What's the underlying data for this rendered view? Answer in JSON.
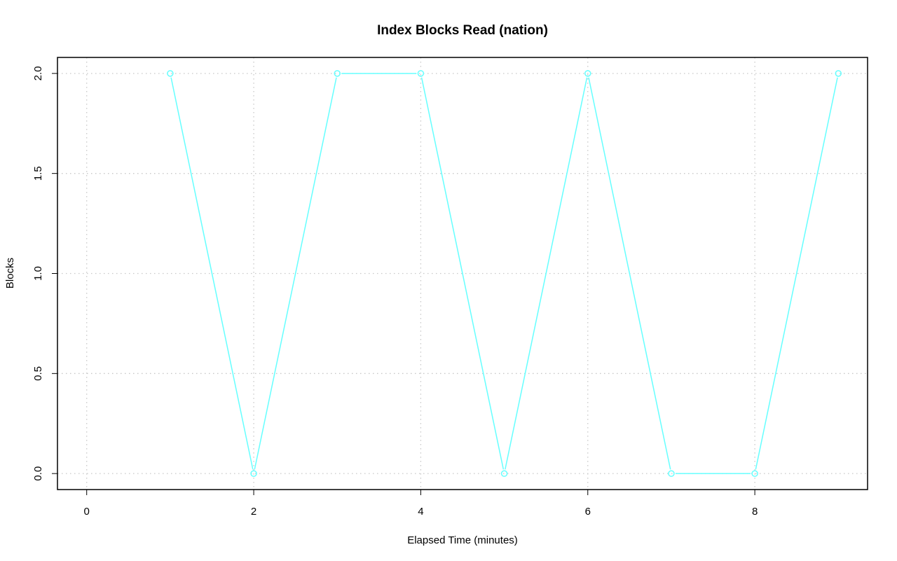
{
  "chart_data": {
    "type": "line",
    "title": "Index Blocks Read (nation)",
    "xlabel": "Elapsed Time (minutes)",
    "ylabel": "Blocks",
    "xlim": [
      -0.35,
      9.35
    ],
    "ylim": [
      -0.08,
      2.08
    ],
    "x_ticks": [
      0,
      2,
      4,
      6,
      8
    ],
    "x_tick_labels": [
      "0",
      "2",
      "4",
      "6",
      "8"
    ],
    "y_ticks": [
      0,
      0.5,
      1,
      1.5,
      2
    ],
    "y_tick_labels": [
      "0.0",
      "0.5",
      "1.0",
      "1.5",
      "2.0"
    ],
    "grid": true,
    "grid_x": [
      0,
      2,
      4,
      6,
      8
    ],
    "grid_y": [
      0,
      0.5,
      1,
      1.5,
      2
    ],
    "series": [
      {
        "color": "#66ffff",
        "marker": "circle",
        "x": [
          1,
          2,
          3,
          4,
          5,
          6,
          7,
          8,
          9
        ],
        "values": [
          2,
          0,
          2,
          2,
          0,
          2,
          0,
          0,
          2
        ]
      }
    ]
  }
}
